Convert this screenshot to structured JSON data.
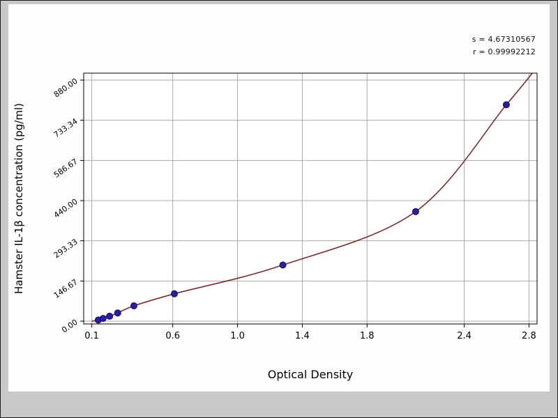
{
  "chart": {
    "annotation_s": "s = 4.67310567",
    "annotation_r": "r = 0.99992212",
    "xlabel": "Optical Density",
    "ylabel": "Hamster IL-1β concentration (pg/ml)"
  },
  "chart_data": {
    "type": "scatter",
    "title": "",
    "xlabel": "Optical Density",
    "ylabel": "Hamster IL-1β concentration (pg/ml)",
    "annotations": [
      "s = 4.67310567",
      "r = 0.99992212"
    ],
    "xlim": [
      0.05,
      2.85
    ],
    "ylim": [
      0,
      915
    ],
    "y_scale_max": 880,
    "grid": true,
    "legend": "none",
    "x_ticks": [
      {
        "v": 0.1,
        "label": "0.1"
      },
      {
        "v": 0.6,
        "label": "0.6"
      },
      {
        "v": 1.0,
        "label": "1.0"
      },
      {
        "v": 1.4,
        "label": "1.4"
      },
      {
        "v": 1.8,
        "label": "1.8"
      },
      {
        "v": 2.4,
        "label": "2.4"
      },
      {
        "v": 2.8,
        "label": "2.8"
      }
    ],
    "y_ticks": [
      {
        "v": 0,
        "label": "0.00"
      },
      {
        "v": 146.67,
        "label": "146.67"
      },
      {
        "v": 293.33,
        "label": "293.33"
      },
      {
        "v": 440.0,
        "label": "440.00"
      },
      {
        "v": 586.67,
        "label": "586.67"
      },
      {
        "v": 733.34,
        "label": "733.34"
      },
      {
        "v": 880.0,
        "label": "880.00"
      }
    ],
    "points": [
      {
        "x": 0.14,
        "y": 4
      },
      {
        "x": 0.17,
        "y": 10
      },
      {
        "x": 0.21,
        "y": 18
      },
      {
        "x": 0.26,
        "y": 30
      },
      {
        "x": 0.36,
        "y": 56
      },
      {
        "x": 0.61,
        "y": 100
      },
      {
        "x": 1.28,
        "y": 205
      },
      {
        "x": 2.1,
        "y": 400
      },
      {
        "x": 2.66,
        "y": 790
      }
    ],
    "curve": [
      [
        0.1,
        0
      ],
      [
        0.14,
        4
      ],
      [
        0.17,
        10
      ],
      [
        0.21,
        18
      ],
      [
        0.26,
        30
      ],
      [
        0.36,
        56
      ],
      [
        0.61,
        100
      ],
      [
        1.28,
        205
      ],
      [
        2.1,
        400
      ],
      [
        2.66,
        790
      ],
      [
        2.82,
        905
      ]
    ],
    "colors": {
      "curve": "#7d2a2a",
      "marker": "#2a1d9e",
      "marker_edge": "#150d66",
      "grid": "#a9a9a9",
      "axis": "#000000",
      "plot_bg": "#ffffff",
      "panel_bg": "#fdfdfd",
      "page_bg": "#c9c9c9"
    }
  }
}
